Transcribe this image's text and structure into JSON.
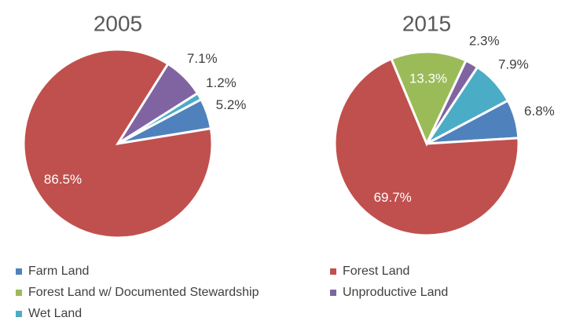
{
  "chart_data": [
    {
      "type": "pie",
      "title": "2005",
      "categories": [
        "Farm Land",
        "Forest Land",
        "Forest Land w/ Documented Stewardship",
        "Unproductive Land",
        "Wet Land"
      ],
      "values": [
        5.2,
        86.5,
        null,
        7.1,
        1.2
      ],
      "value_labels": [
        "5.2%",
        "86.5%",
        null,
        "7.1%",
        "1.2%"
      ],
      "colors": [
        "#4f81bd",
        "#c0504d",
        "#9bbb59",
        "#8064a2",
        "#4bacc6"
      ]
    },
    {
      "type": "pie",
      "title": "2015",
      "categories": [
        "Farm Land",
        "Forest Land",
        "Forest Land w/ Documented Stewardship",
        "Unproductive Land",
        "Wet Land"
      ],
      "values": [
        6.8,
        69.7,
        13.3,
        2.3,
        7.9
      ],
      "value_labels": [
        "6.8%",
        "69.7%",
        "13.3%",
        "2.3%",
        "7.9%"
      ],
      "colors": [
        "#4f81bd",
        "#c0504d",
        "#9bbb59",
        "#8064a2",
        "#4bacc6"
      ]
    }
  ],
  "legend": {
    "position": "bottom"
  }
}
